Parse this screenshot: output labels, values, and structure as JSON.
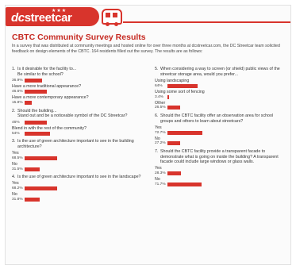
{
  "colors": {
    "brand_red": "#d8342c",
    "title_red": "#c62a22"
  },
  "logo": {
    "dc": "dc",
    "street": "streetcar",
    "stars": "★★★"
  },
  "title": "CBTC Community Survey Results",
  "intro": "In a survey that was distributed at community meetings and hosted online for over three months at dcstreetcar.com, the DC Streetcar team solicited feedback on design elements of the CBTC. 164 residents filled out the survey. The results are as follows:",
  "questions": [
    {
      "num": "1.",
      "text": "Is it desirable for the facility to...\nBe similar to the school?",
      "options": [
        {
          "label": "",
          "pct": "36.9%",
          "value": 36.9
        },
        {
          "label": "Have a more traditional appearance?",
          "pct": "46.6%",
          "value": 46.6
        },
        {
          "label": "Have a more contemporary appearance?",
          "pct": "15.8%",
          "value": 15.8
        }
      ]
    },
    {
      "num": "2.",
      "text": "Should the building...\nStand out and be a noticeable symbol of the DC Streetcar?",
      "options": [
        {
          "label": "",
          "pct": "46%",
          "value": 46
        },
        {
          "label": "Blend in with the rest of the community?",
          "pct": "54%",
          "value": 54
        }
      ]
    },
    {
      "num": "3.",
      "text": "Is the use of green architecture important to see in the building architecture?",
      "options": [
        {
          "label": "Yes",
          "pct": "68.5%",
          "value": 68.5
        },
        {
          "label": "No",
          "pct": "31.5%",
          "value": 31.5
        }
      ]
    },
    {
      "num": "4.",
      "text": "Is the use of green architecture important to see in the landscape?",
      "options": [
        {
          "label": "Yes",
          "pct": "68.2%",
          "value": 68.2
        },
        {
          "label": "No",
          "pct": "31.8%",
          "value": 31.8
        }
      ]
    },
    {
      "num": "5.",
      "text": "When considering a way to screen (or shield) public views of the streetcar storage area, would you prefer...",
      "options": [
        {
          "label": "Using landscaping",
          "pct": "64%",
          "value": 64
        },
        {
          "label": "Using some sort of fencing",
          "pct": "3.4%",
          "value": 3.4
        },
        {
          "label": "Other",
          "pct": "26.5%",
          "value": 26.5
        }
      ]
    },
    {
      "num": "6.",
      "text": "Should the CBTC facility offer an observation area for school groups and others to learn about streetcars?",
      "options": [
        {
          "label": "Yes",
          "pct": "72.7%",
          "value": 72.7
        },
        {
          "label": "No",
          "pct": "27.2%",
          "value": 27.2
        }
      ]
    },
    {
      "num": "7.",
      "text": "Should the CBTC facility provide a transparent facade to demonstrate what is going on inside the building? A transparent facade could include large windows or glass walls.",
      "options": [
        {
          "label": "Yes",
          "pct": "28.3%",
          "value": 28.3
        },
        {
          "label": "No",
          "pct": "71.7%",
          "value": 71.7
        }
      ]
    }
  ]
}
